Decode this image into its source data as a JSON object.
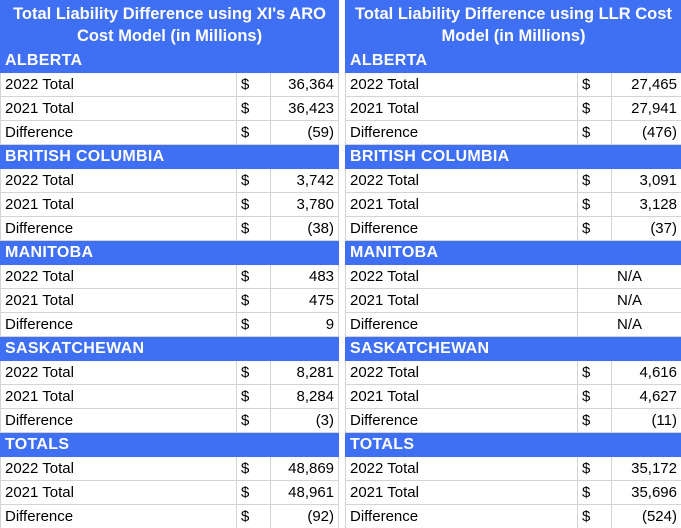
{
  "tables": [
    {
      "title": "Total Liability Difference using XI's ARO Cost Model (in Millions)",
      "sections": [
        {
          "name": "ALBERTA",
          "rows": [
            [
              "2022 Total",
              "$",
              "36,364"
            ],
            [
              "2021 Total",
              "$",
              "36,423"
            ],
            [
              "Difference",
              "$",
              "(59)"
            ]
          ]
        },
        {
          "name": "BRITISH COLUMBIA",
          "rows": [
            [
              "2022 Total",
              "$",
              "3,742"
            ],
            [
              "2021 Total",
              "$",
              "3,780"
            ],
            [
              "Difference",
              "$",
              "(38)"
            ]
          ]
        },
        {
          "name": "MANITOBA",
          "rows": [
            [
              "2022 Total",
              "$",
              "483"
            ],
            [
              "2021 Total",
              "$",
              "475"
            ],
            [
              "Difference",
              "$",
              "9"
            ]
          ]
        },
        {
          "name": "SASKATCHEWAN",
          "rows": [
            [
              "2022 Total",
              "$",
              "8,281"
            ],
            [
              "2021 Total",
              "$",
              "8,284"
            ],
            [
              "Difference",
              "$",
              "(3)"
            ]
          ]
        },
        {
          "name": "TOTALS",
          "rows": [
            [
              "2022 Total",
              "$",
              "48,869"
            ],
            [
              "2021 Total",
              "$",
              "48,961"
            ],
            [
              "Difference",
              "$",
              "(92)"
            ]
          ]
        }
      ]
    },
    {
      "title": "Total Liability Difference using LLR Cost Model (in Millions)",
      "sections": [
        {
          "name": "ALBERTA",
          "rows": [
            [
              "2022 Total",
              "$",
              "27,465"
            ],
            [
              "2021 Total",
              "$",
              "27,941"
            ],
            [
              "Difference",
              "$",
              "(476)"
            ]
          ]
        },
        {
          "name": "BRITISH COLUMBIA",
          "rows": [
            [
              "2022 Total",
              "$",
              "3,091"
            ],
            [
              "2021 Total",
              "$",
              "3,128"
            ],
            [
              "Difference",
              "$",
              "(37)"
            ]
          ]
        },
        {
          "name": "MANITOBA",
          "rows": [
            [
              "2022 Total",
              "N/A"
            ],
            [
              "2021 Total",
              "N/A"
            ],
            [
              "Difference",
              "N/A"
            ]
          ]
        },
        {
          "name": "SASKATCHEWAN",
          "rows": [
            [
              "2022 Total",
              "$",
              "4,616"
            ],
            [
              "2021 Total",
              "$",
              "4,627"
            ],
            [
              "Difference",
              "$",
              "(11)"
            ]
          ]
        },
        {
          "name": "TOTALS",
          "rows": [
            [
              "2022 Total",
              "$",
              "35,172"
            ],
            [
              "2021 Total",
              "$",
              "35,696"
            ],
            [
              "Difference",
              "$",
              "(524)"
            ]
          ]
        }
      ]
    }
  ]
}
